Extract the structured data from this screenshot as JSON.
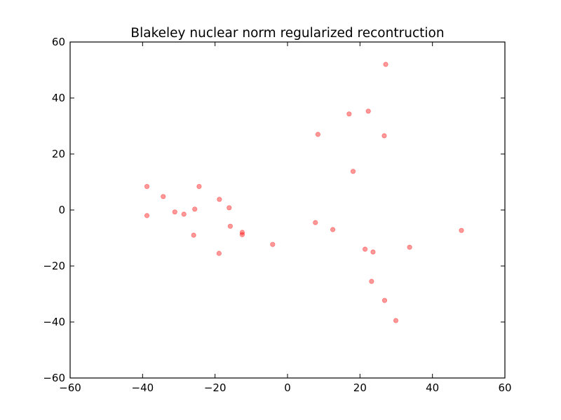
{
  "chart_data": {
    "type": "scatter",
    "title": "Blakeley nuclear norm regularized recontruction",
    "xlabel": "",
    "ylabel": "",
    "xlim": [
      -60,
      60
    ],
    "ylim": [
      -60,
      60
    ],
    "xticks": [
      -60,
      -40,
      -20,
      0,
      20,
      40,
      60
    ],
    "yticks": [
      -60,
      -40,
      -20,
      0,
      20,
      40,
      60
    ],
    "xtick_labels": [
      "−60",
      "−40",
      "−20",
      "0",
      "20",
      "40",
      "60"
    ],
    "ytick_labels": [
      "−60",
      "−40",
      "−20",
      "0",
      "20",
      "40",
      "60"
    ],
    "grid": false,
    "legend": "none",
    "point_color": "#ff0000",
    "point_alpha": 0.4,
    "series": [
      {
        "points": [
          {
            "x": -38.8,
            "y": 8.4
          },
          {
            "x": -38.8,
            "y": -2.0
          },
          {
            "x": -34.3,
            "y": 4.8
          },
          {
            "x": -31.1,
            "y": -0.7
          },
          {
            "x": -28.6,
            "y": -1.5
          },
          {
            "x": -25.6,
            "y": 0.3
          },
          {
            "x": -25.9,
            "y": -9.0
          },
          {
            "x": -24.4,
            "y": 8.4
          },
          {
            "x": -18.8,
            "y": 3.8
          },
          {
            "x": -18.9,
            "y": -15.5
          },
          {
            "x": -16.1,
            "y": 0.8
          },
          {
            "x": -15.8,
            "y": -5.8
          },
          {
            "x": -12.5,
            "y": -8.0
          },
          {
            "x": -12.5,
            "y": -8.8
          },
          {
            "x": -4.1,
            "y": -12.3
          },
          {
            "x": 7.7,
            "y": -4.5
          },
          {
            "x": 8.4,
            "y": 27.0
          },
          {
            "x": 12.5,
            "y": -7.0
          },
          {
            "x": 17.0,
            "y": 34.3
          },
          {
            "x": 18.1,
            "y": 13.8
          },
          {
            "x": 21.4,
            "y": -14.0
          },
          {
            "x": 22.3,
            "y": 35.3
          },
          {
            "x": 23.2,
            "y": -25.5
          },
          {
            "x": 23.6,
            "y": -15.0
          },
          {
            "x": 26.7,
            "y": 26.5
          },
          {
            "x": 27.1,
            "y": 52.0
          },
          {
            "x": 26.8,
            "y": -32.3
          },
          {
            "x": 29.9,
            "y": -39.5
          },
          {
            "x": 33.7,
            "y": -13.3
          },
          {
            "x": 48.0,
            "y": -7.3
          }
        ]
      }
    ]
  }
}
